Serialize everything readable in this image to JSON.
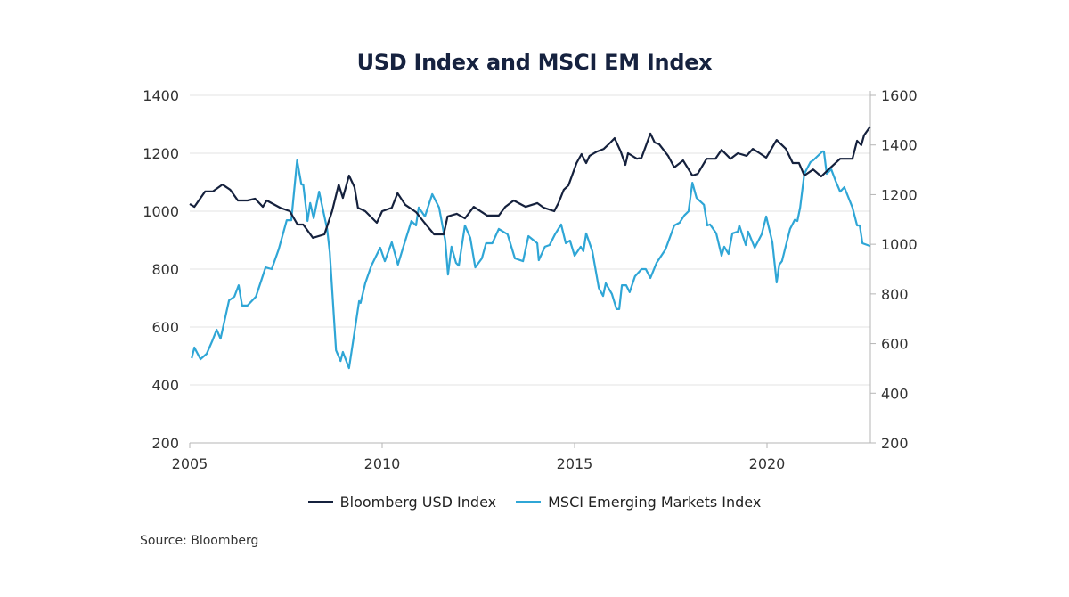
{
  "chart_data": {
    "type": "line",
    "title": "USD Index and MSCI EM Index",
    "source": "Source: Bloomberg",
    "grid": true,
    "legend_placement": "bottom",
    "x_ticks": [
      "2005",
      "2010",
      "2015",
      "2020"
    ],
    "xlim": [
      2005,
      2022.7
    ],
    "y_left": {
      "ticks": [
        "200",
        "400",
        "600",
        "800",
        "1000",
        "1200",
        "1400"
      ],
      "ylim": [
        200,
        1400
      ]
    },
    "y_right": {
      "ticks": [
        "200",
        "400",
        "600",
        "800",
        "1000",
        "1200",
        "1400",
        "1600"
      ],
      "ylim": [
        200,
        1600
      ]
    },
    "series": [
      {
        "name": "Bloomberg USD Index",
        "axis": "left",
        "color": "#15213d",
        "x": [
          2005.0,
          2005.12,
          2005.4,
          2005.6,
          2005.85,
          2006.05,
          2006.25,
          2006.5,
          2006.7,
          2006.9,
          2007.0,
          2007.35,
          2007.6,
          2007.8,
          2007.95,
          2008.2,
          2008.5,
          2008.7,
          2008.87,
          2008.98,
          2009.14,
          2009.28,
          2009.37,
          2009.56,
          2009.86,
          2010.0,
          2010.25,
          2010.4,
          2010.6,
          2010.88,
          2011.1,
          2011.35,
          2011.6,
          2011.7,
          2011.94,
          2012.15,
          2012.38,
          2012.73,
          2013.03,
          2013.2,
          2013.42,
          2013.73,
          2014.03,
          2014.2,
          2014.47,
          2014.58,
          2014.72,
          2014.84,
          2015.05,
          2015.18,
          2015.3,
          2015.39,
          2015.58,
          2015.76,
          2015.93,
          2016.04,
          2016.2,
          2016.32,
          2016.39,
          2016.62,
          2016.74,
          2016.97,
          2017.08,
          2017.2,
          2017.43,
          2017.59,
          2017.82,
          2018.06,
          2018.2,
          2018.43,
          2018.66,
          2018.82,
          2019.05,
          2019.24,
          2019.47,
          2019.63,
          2019.81,
          2019.98,
          2020.25,
          2020.49,
          2020.67,
          2020.83,
          2020.97,
          2021.2,
          2021.41,
          2021.6,
          2021.9,
          2022.22,
          2022.34,
          2022.45,
          2022.52,
          2022.68
        ],
        "values": [
          1025,
          1015,
          1068,
          1068,
          1092,
          1074,
          1037,
          1037,
          1043,
          1015,
          1037,
          1012,
          1000,
          954,
          954,
          908,
          920,
          1000,
          1092,
          1046,
          1123,
          1083,
          1012,
          1000,
          960,
          1000,
          1012,
          1062,
          1022,
          997,
          960,
          920,
          920,
          982,
          991,
          975,
          1015,
          985,
          985,
          1015,
          1037,
          1015,
          1028,
          1012,
          1000,
          1028,
          1074,
          1089,
          1166,
          1197,
          1166,
          1191,
          1206,
          1215,
          1237,
          1252,
          1206,
          1160,
          1200,
          1181,
          1185,
          1268,
          1237,
          1231,
          1191,
          1151,
          1175,
          1123,
          1129,
          1181,
          1181,
          1212,
          1181,
          1200,
          1191,
          1215,
          1200,
          1185,
          1246,
          1215,
          1166,
          1166,
          1123,
          1144,
          1120,
          1144,
          1181,
          1181,
          1243,
          1228,
          1262,
          1292
        ]
      },
      {
        "name": "MSCI Emerging Markets Index",
        "axis": "right",
        "color": "#2fa6d6",
        "x": [
          2005.05,
          2005.12,
          2005.28,
          2005.44,
          2005.58,
          2005.7,
          2005.8,
          2006.02,
          2006.16,
          2006.27,
          2006.36,
          2006.5,
          2006.72,
          2006.97,
          2007.13,
          2007.31,
          2007.52,
          2007.64,
          2007.79,
          2007.9,
          2007.95,
          2008.06,
          2008.13,
          2008.22,
          2008.36,
          2008.57,
          2008.64,
          2008.8,
          2008.92,
          2008.98,
          2009.14,
          2009.28,
          2009.4,
          2009.44,
          2009.56,
          2009.72,
          2009.95,
          2010.07,
          2010.25,
          2010.41,
          2010.55,
          2010.76,
          2010.88,
          2010.95,
          2011.11,
          2011.3,
          2011.48,
          2011.64,
          2011.71,
          2011.8,
          2011.92,
          2011.99,
          2012.15,
          2012.29,
          2012.42,
          2012.59,
          2012.7,
          2012.86,
          2013.03,
          2013.26,
          2013.45,
          2013.66,
          2013.8,
          2014.03,
          2014.07,
          2014.23,
          2014.35,
          2014.49,
          2014.65,
          2014.77,
          2014.88,
          2015.0,
          2015.16,
          2015.23,
          2015.3,
          2015.46,
          2015.63,
          2015.74,
          2015.81,
          2015.97,
          2016.09,
          2016.16,
          2016.23,
          2016.34,
          2016.43,
          2016.57,
          2016.74,
          2016.85,
          2016.97,
          2017.13,
          2017.36,
          2017.59,
          2017.73,
          2017.85,
          2017.96,
          2018.06,
          2018.17,
          2018.36,
          2018.45,
          2018.52,
          2018.68,
          2018.82,
          2018.89,
          2019.0,
          2019.1,
          2019.24,
          2019.28,
          2019.45,
          2019.51,
          2019.68,
          2019.86,
          2019.98,
          2020.14,
          2020.25,
          2020.32,
          2020.39,
          2020.6,
          2020.72,
          2020.79,
          2020.86,
          2020.97,
          2021.13,
          2021.2,
          2021.44,
          2021.48,
          2021.55,
          2021.67,
          2021.78,
          2021.9,
          2022.01,
          2022.22,
          2022.34,
          2022.41,
          2022.48,
          2022.68
        ],
        "values": [
          541,
          584,
          537,
          559,
          609,
          656,
          620,
          774,
          789,
          835,
          753,
          753,
          789,
          907,
          900,
          979,
          1097,
          1097,
          1338,
          1241,
          1241,
          1094,
          1166,
          1105,
          1212,
          1062,
          968,
          573,
          530,
          566,
          501,
          645,
          771,
          764,
          843,
          914,
          986,
          932,
          1008,
          918,
          990,
          1094,
          1076,
          1148,
          1112,
          1202,
          1148,
          1015,
          878,
          990,
          925,
          914,
          1076,
          1026,
          907,
          943,
          1004,
          1004,
          1062,
          1040,
          943,
          932,
          1033,
          1004,
          936,
          990,
          997,
          1040,
          1080,
          1004,
          1015,
          954,
          990,
          972,
          1044,
          972,
          824,
          792,
          843,
          800,
          739,
          739,
          835,
          835,
          807,
          871,
          900,
          900,
          864,
          925,
          979,
          1076,
          1087,
          1116,
          1133,
          1248,
          1187,
          1159,
          1076,
          1080,
          1044,
          954,
          990,
          961,
          1044,
          1051,
          1076,
          997,
          1051,
          986,
          1040,
          1112,
          1008,
          846,
          918,
          932,
          1062,
          1098,
          1094,
          1148,
          1284,
          1331,
          1338,
          1374,
          1374,
          1284,
          1302,
          1256,
          1212,
          1230,
          1148,
          1076,
          1076,
          1004,
          993
        ]
      }
    ]
  }
}
